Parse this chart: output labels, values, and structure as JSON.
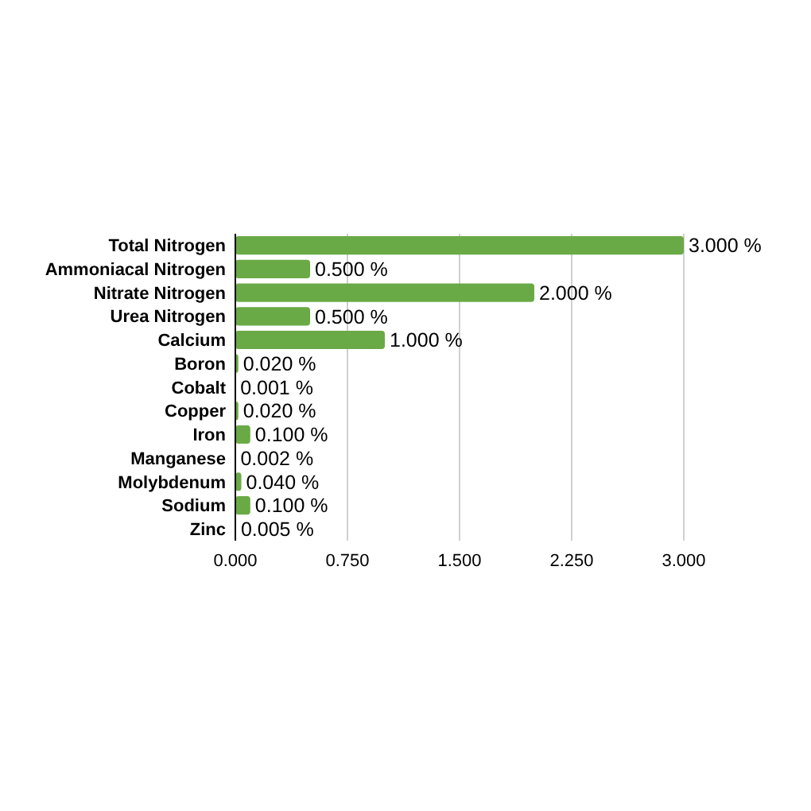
{
  "chart_data": {
    "type": "bar",
    "orientation": "horizontal",
    "categories": [
      "Total Nitrogen",
      "Ammoniacal Nitrogen",
      "Nitrate Nitrogen",
      "Urea Nitrogen",
      "Calcium",
      "Boron",
      "Cobalt",
      "Copper",
      "Iron",
      "Manganese",
      "Molybdenum",
      "Sodium",
      "Zinc"
    ],
    "values": [
      3,
      0.5,
      2,
      0.5,
      1,
      0.02,
      0.001,
      0.02,
      0.1,
      0.002,
      0.04,
      0.1,
      0.005
    ],
    "value_labels": [
      "3.000 %",
      "0.500 %",
      "2.000 %",
      "0.500 %",
      "1.000 %",
      "0.020 %",
      "0.001 %",
      "0.020 %",
      "0.100 %",
      "0.002 %",
      "0.040 %",
      "0.100 %",
      "0.005 %"
    ],
    "color": "#6aaa46",
    "xlim": [
      0,
      3
    ],
    "xticks": [
      {
        "value": 0,
        "label": "0.000"
      },
      {
        "value": 0.75,
        "label": "0.750"
      },
      {
        "value": 1.5,
        "label": "1.500"
      },
      {
        "value": 2.25,
        "label": "2.250"
      },
      {
        "value": 3,
        "label": "3.000"
      }
    ],
    "grid": "x"
  }
}
